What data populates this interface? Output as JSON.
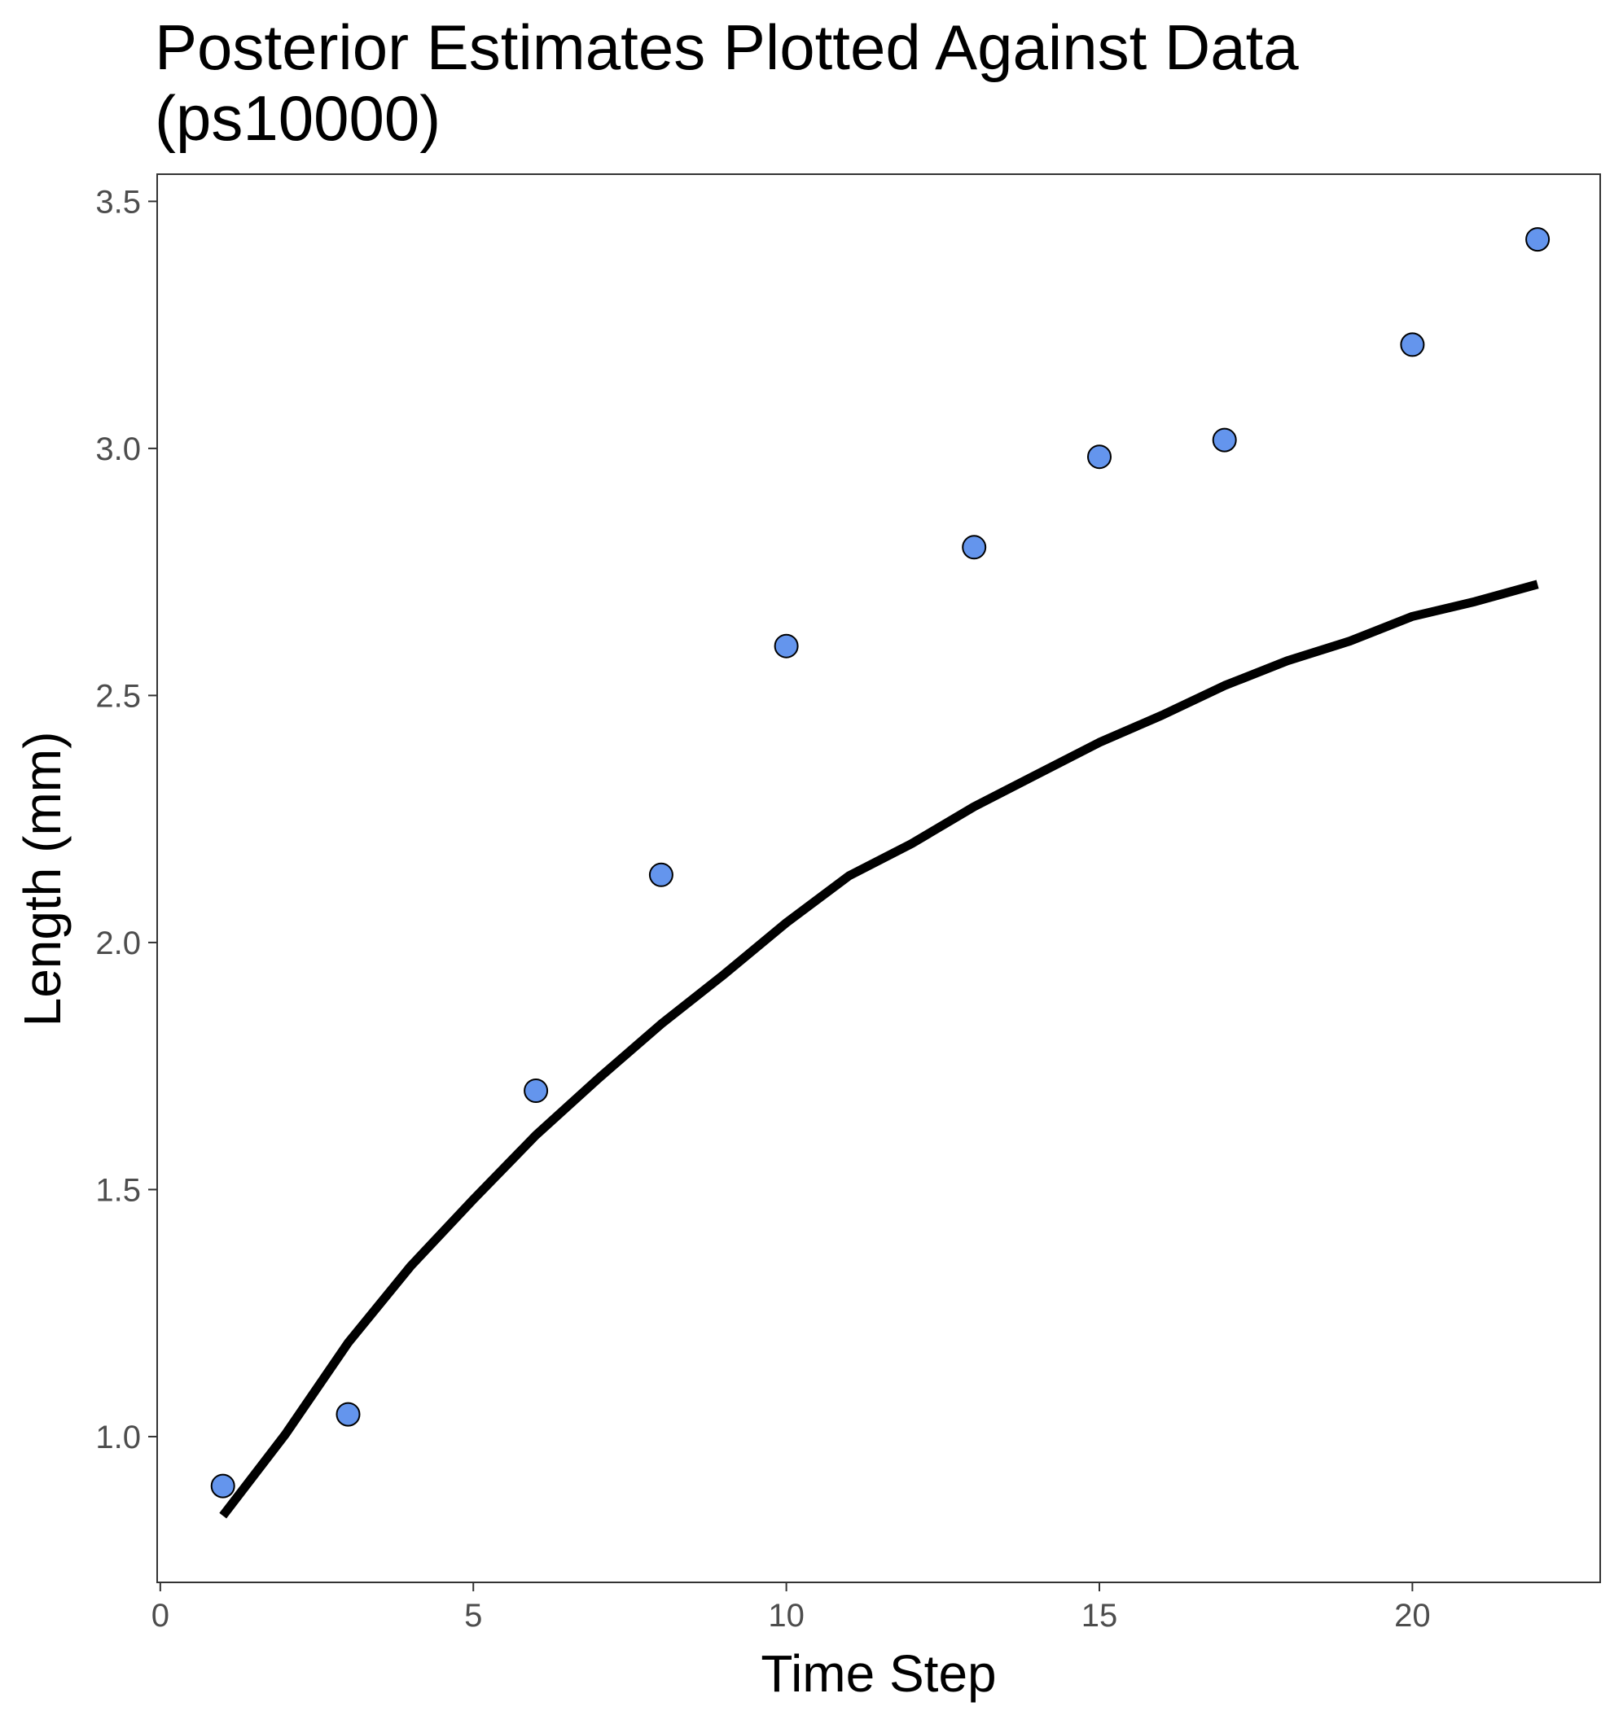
{
  "chart_data": {
    "type": "scatter",
    "title": [
      "Posterior Estimates Plotted Against Data",
      "(ps10000)"
    ],
    "xlabel": "Time Step",
    "ylabel": "Length (mm)",
    "xlim": [
      -0.05,
      23.0
    ],
    "ylim": [
      0.705,
      3.555
    ],
    "xticks": [
      0,
      5,
      10,
      15,
      20
    ],
    "xtick_labels": [
      "0",
      "5",
      "10",
      "15",
      "20"
    ],
    "yticks": [
      1.0,
      1.5,
      2.0,
      2.5,
      3.0,
      3.5
    ],
    "ytick_labels": [
      "1.0",
      "1.5",
      "2.0",
      "2.5",
      "3.0",
      "3.5"
    ],
    "grid": false,
    "legend": "none",
    "series": [
      {
        "kind": "points",
        "color": "#6495ED",
        "stroke": "#000000",
        "x": [
          1,
          3,
          6,
          8,
          10,
          13,
          15,
          17,
          20,
          22
        ],
        "y": [
          0.9,
          1.045,
          1.7,
          2.137,
          2.6,
          2.8,
          2.983,
          3.017,
          3.21,
          3.423
        ]
      },
      {
        "kind": "line",
        "color": "#000000",
        "x": [
          1,
          2,
          3,
          4,
          5,
          6,
          7,
          8,
          9,
          10,
          11,
          12,
          13,
          14,
          15,
          16,
          17,
          18,
          19,
          20,
          21,
          22
        ],
        "y": [
          0.84,
          1.005,
          1.19,
          1.345,
          1.48,
          1.61,
          1.725,
          1.835,
          1.935,
          2.04,
          2.135,
          2.2,
          2.275,
          2.34,
          2.405,
          2.46,
          2.52,
          2.57,
          2.61,
          2.66,
          2.69,
          2.725
        ]
      }
    ]
  }
}
